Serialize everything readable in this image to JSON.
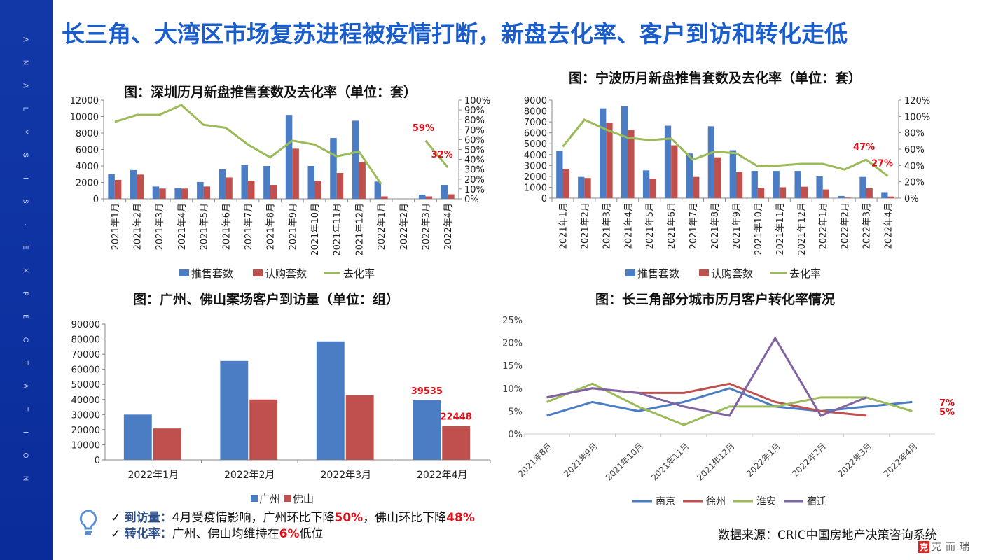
{
  "sidebar": {
    "letters": [
      "A",
      "N",
      "A",
      "L",
      "Y",
      "S",
      "I",
      "S",
      "·",
      "E",
      "X",
      "P",
      "E",
      "C",
      "T",
      "A",
      "T",
      "I",
      "O",
      "N"
    ]
  },
  "title": "长三角、大湾区市场复苏进程被疫情打断，新盘去化率、客户到访和转化走低",
  "notes": {
    "line1_key": "到访量：",
    "line1_text_a": "4月受疫情影响，广州环比下降",
    "line1_red_a": "50%",
    "line1_text_b": "，佛山环比下降",
    "line1_red_b": "48%",
    "line2_key": "转化率：",
    "line2_text_a": "广州、佛山均维持在",
    "line2_red_a": "6%",
    "line2_text_b": "低位",
    "check": "✓",
    "icon": "lightbulb-icon"
  },
  "source": "数据来源：CRIC中国房地产决策咨询系统",
  "logo": {
    "mark": "克而瑞",
    "text": "克而瑞"
  },
  "colors": {
    "blue": "#4a7dc4",
    "red": "#c0504d",
    "green": "#9bbb59",
    "purple": "#8064a2",
    "accent": "#e0101a",
    "title": "#1a5dcc"
  },
  "chart_data": [
    {
      "type": "bar+line",
      "title": "图：深圳历月新盘推售套数及去化率（单位：套）",
      "categories": [
        "2021年1月",
        "2021年2月",
        "2021年3月",
        "2021年4月",
        "2021年5月",
        "2021年6月",
        "2021年7月",
        "2021年8月",
        "2021年9月",
        "2021年10月",
        "2021年11月",
        "2021年12月",
        "2022年1月",
        "2022年2月",
        "2022年3月",
        "2022年4月"
      ],
      "series": [
        {
          "name": "推售套数",
          "type": "bar",
          "axis": "left",
          "values": [
            3000,
            3500,
            1500,
            1300,
            2050,
            3600,
            4100,
            4000,
            10200,
            4000,
            7400,
            9500,
            2100,
            0,
            500,
            1700
          ]
        },
        {
          "name": "认购套数",
          "type": "bar",
          "axis": "left",
          "values": [
            2300,
            2950,
            1250,
            1250,
            1500,
            2600,
            2200,
            1700,
            6100,
            2200,
            3150,
            4500,
            300,
            0,
            300,
            550
          ]
        },
        {
          "name": "去化率",
          "type": "line",
          "axis": "right",
          "values": [
            78,
            85,
            85,
            95,
            75,
            72,
            55,
            42,
            59,
            55,
            43,
            48,
            15,
            null,
            59,
            32
          ]
        }
      ],
      "ylim": [
        0,
        12000
      ],
      "ystep": 2000,
      "y2lim": [
        0,
        100
      ],
      "y2step": 10,
      "y2unit": "%",
      "annotations": [
        {
          "category": "2022年3月",
          "text": "59%"
        },
        {
          "category": "2022年4月",
          "text": "32%"
        }
      ],
      "legend": "bottom",
      "grid": false
    },
    {
      "type": "bar+line",
      "title": "图：宁波历月新盘推售套数及去化率（单位：套）",
      "categories": [
        "2021年1月",
        "2021年2月",
        "2021年3月",
        "2021年4月",
        "2021年5月",
        "2021年6月",
        "2021年7月",
        "2021年8月",
        "2021年9月",
        "2021年10月",
        "2021年11月",
        "2021年12月",
        "2022年1月",
        "2022年2月",
        "2022年3月",
        "2022年4月"
      ],
      "series": [
        {
          "name": "推售套数",
          "type": "bar",
          "axis": "left",
          "values": [
            4350,
            1950,
            8250,
            8450,
            2550,
            6650,
            4100,
            6600,
            4400,
            2500,
            2500,
            2500,
            2000,
            200,
            1950,
            550
          ]
        },
        {
          "name": "认购套数",
          "type": "bar",
          "axis": "left",
          "values": [
            2700,
            1850,
            6900,
            6250,
            1800,
            4850,
            1950,
            3750,
            2400,
            950,
            1000,
            1050,
            800,
            50,
            900,
            150
          ]
        },
        {
          "name": "去化率",
          "type": "line",
          "axis": "right",
          "values": [
            63,
            96,
            84,
            74,
            71,
            73,
            47,
            57,
            55,
            39,
            40,
            42,
            42,
            35,
            47,
            27
          ]
        }
      ],
      "ylim": [
        0,
        9000
      ],
      "ystep": 1000,
      "y2lim": [
        0,
        120
      ],
      "y2step": 20,
      "y2unit": "%",
      "annotations": [
        {
          "category": "2022年3月",
          "text": "47%"
        },
        {
          "category": "2022年4月",
          "text": "27%"
        }
      ],
      "legend": "bottom",
      "grid": false
    },
    {
      "type": "bar",
      "title": "图：广州、佛山案场客户到访量（单位：组）",
      "categories": [
        "2022年1月",
        "2022年2月",
        "2022年3月",
        "2022年4月"
      ],
      "series": [
        {
          "name": "广州",
          "values": [
            30000,
            65500,
            78500,
            39535
          ]
        },
        {
          "name": "佛山",
          "values": [
            20800,
            40000,
            42800,
            22448
          ]
        }
      ],
      "ylim": [
        0,
        90000
      ],
      "ystep": 10000,
      "annotations": [
        {
          "category": "2022年4月",
          "series": "广州",
          "text": "39535"
        },
        {
          "category": "2022年4月",
          "series": "佛山",
          "text": "22448"
        }
      ],
      "legend": "bottom",
      "grid": false
    },
    {
      "type": "line",
      "title": "图：长三角部分城市历月客户转化率情况",
      "categories": [
        "2021年8月",
        "2021年9月",
        "2021年10月",
        "2021年11月",
        "2021年12月",
        "2022年1月",
        "2022年2月",
        "2022年3月",
        "2022年4月"
      ],
      "series": [
        {
          "name": "南京",
          "values": [
            4,
            7,
            5,
            7,
            10,
            6,
            5,
            6,
            7
          ]
        },
        {
          "name": "徐州",
          "values": [
            8,
            10,
            9,
            9,
            11,
            7,
            5,
            4,
            null
          ]
        },
        {
          "name": "淮安",
          "values": [
            7,
            11,
            6,
            2,
            6,
            6,
            8,
            8,
            5
          ]
        },
        {
          "name": "宿迁",
          "values": [
            8,
            10,
            9,
            6,
            4,
            21,
            4,
            8,
            null
          ]
        }
      ],
      "ylim": [
        0,
        25
      ],
      "ystep": 5,
      "yunit": "%",
      "annotations": [
        {
          "text": "7%"
        },
        {
          "text": "5%"
        }
      ],
      "legend": "bottom",
      "grid": false
    }
  ]
}
